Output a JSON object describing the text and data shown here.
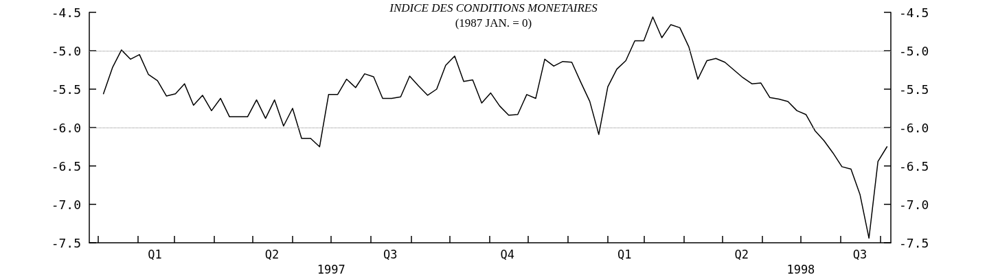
{
  "chart_data": {
    "type": "line",
    "title": "INDICE DES CONDITIONS MONETAIRES",
    "subtitle": "(1987 JAN. = 0)",
    "x": [
      "1997-01-05",
      "1997-01-12",
      "1997-01-19",
      "1997-01-26",
      "1997-02-02",
      "1997-02-09",
      "1997-02-16",
      "1997-02-23",
      "1997-03-02",
      "1997-03-09",
      "1997-03-16",
      "1997-03-23",
      "1997-03-30",
      "1997-04-06",
      "1997-04-13",
      "1997-04-20",
      "1997-04-27",
      "1997-05-04",
      "1997-05-11",
      "1997-05-18",
      "1997-05-25",
      "1997-06-01",
      "1997-06-08",
      "1997-06-15",
      "1997-06-22",
      "1997-06-29",
      "1997-07-06",
      "1997-07-13",
      "1997-07-20",
      "1997-07-27",
      "1997-08-03",
      "1997-08-10",
      "1997-08-17",
      "1997-08-24",
      "1997-08-31",
      "1997-09-07",
      "1997-09-14",
      "1997-09-21",
      "1997-09-28",
      "1997-10-05",
      "1997-10-12",
      "1997-10-19",
      "1997-10-26",
      "1997-11-02",
      "1997-11-09",
      "1997-11-16",
      "1997-11-23",
      "1997-11-30",
      "1997-12-07",
      "1997-12-14",
      "1997-12-21",
      "1997-12-28",
      "1998-01-04",
      "1998-01-11",
      "1998-01-18",
      "1998-01-25",
      "1998-02-01",
      "1998-02-08",
      "1998-02-15",
      "1998-02-22",
      "1998-03-01",
      "1998-03-08",
      "1998-03-15",
      "1998-03-22",
      "1998-03-29",
      "1998-04-05",
      "1998-04-12",
      "1998-04-19",
      "1998-04-26",
      "1998-05-03",
      "1998-05-10",
      "1998-05-17",
      "1998-05-24",
      "1998-05-31",
      "1998-06-07",
      "1998-06-14",
      "1998-06-21",
      "1998-06-28",
      "1998-07-05",
      "1998-07-12",
      "1998-07-19",
      "1998-07-26",
      "1998-08-02",
      "1998-08-09",
      "1998-08-16",
      "1998-08-23",
      "1998-08-30",
      "1998-09-06"
    ],
    "series": [
      {
        "color": "#000000",
        "values": [
          -5.56,
          -5.22,
          -4.99,
          -5.11,
          -5.05,
          -5.31,
          -5.39,
          -5.59,
          -5.56,
          -5.43,
          -5.71,
          -5.58,
          -5.78,
          -5.62,
          -5.86,
          -5.86,
          -5.86,
          -5.64,
          -5.88,
          -5.64,
          -5.98,
          -5.75,
          -6.14,
          -6.14,
          -6.25,
          -5.57,
          -5.57,
          -5.37,
          -5.48,
          -5.3,
          -5.34,
          -5.62,
          -5.62,
          -5.6,
          -5.33,
          -5.46,
          -5.58,
          -5.5,
          -5.19,
          -5.07,
          -5.4,
          -5.38,
          -5.68,
          -5.55,
          -5.72,
          -5.84,
          -5.83,
          -5.57,
          -5.62,
          -5.11,
          -5.2,
          -5.14,
          -5.15,
          -5.41,
          -5.66,
          -6.09,
          -5.47,
          -5.24,
          -5.13,
          -4.87,
          -4.87,
          -4.56,
          -4.83,
          -4.66,
          -4.7,
          -4.95,
          -5.37,
          -5.13,
          -5.1,
          -5.15,
          -5.25,
          -5.35,
          -5.43,
          -5.42,
          -5.61,
          -5.63,
          -5.66,
          -5.78,
          -5.83,
          -6.04,
          -6.17,
          -6.33,
          -6.51,
          -6.54,
          -6.87,
          -7.44,
          -6.44,
          -6.25
        ]
      }
    ],
    "xlim": [
      "1996-12-25",
      "1998-09-09"
    ],
    "xticks": [
      {
        "value": "1997-01-01",
        "label": null
      },
      {
        "value": "1997-02-01",
        "label": null
      },
      {
        "value": "1997-03-01",
        "label": null
      },
      {
        "value": "1997-04-01",
        "label": null
      },
      {
        "value": "1997-05-01",
        "label": null
      },
      {
        "value": "1997-06-01",
        "label": null
      },
      {
        "value": "1997-07-01",
        "label": null
      },
      {
        "value": "1997-08-01",
        "label": null
      },
      {
        "value": "1997-09-01",
        "label": null
      },
      {
        "value": "1997-10-01",
        "label": null
      },
      {
        "value": "1997-11-01",
        "label": null
      },
      {
        "value": "1997-12-01",
        "label": null
      },
      {
        "value": "1998-01-01",
        "label": null
      },
      {
        "value": "1998-02-01",
        "label": null
      },
      {
        "value": "1998-03-01",
        "label": null
      },
      {
        "value": "1998-04-01",
        "label": null
      },
      {
        "value": "1998-05-01",
        "label": null
      },
      {
        "value": "1998-06-01",
        "label": null
      },
      {
        "value": "1998-07-01",
        "label": null
      },
      {
        "value": "1998-08-01",
        "label": null
      },
      {
        "value": "1998-09-01",
        "label": null
      },
      {
        "value": "1997-02-14",
        "label": "Q1"
      },
      {
        "value": "1997-05-16",
        "label": "Q2"
      },
      {
        "value": "1997-08-16",
        "label": "Q3"
      },
      {
        "value": "1997-11-15",
        "label": "Q4"
      },
      {
        "value": "1998-02-14",
        "label": "Q1"
      },
      {
        "value": "1998-05-16",
        "label": "Q2"
      },
      {
        "value": "1998-08-16",
        "label": "Q3"
      }
    ],
    "x2lim": [
      "1996-12-25",
      "1998-09-09"
    ],
    "x2ticks": [
      {
        "value": "1997-07-01",
        "label": "1997"
      },
      {
        "value": "1998-07-01",
        "label": "1998"
      }
    ],
    "ylim": [
      -7.5,
      -4.5
    ],
    "yticks": [
      -7.5,
      {
        "value": -7,
        "label": "-7.0"
      },
      -6.5,
      {
        "value": -6,
        "label": "-6.0"
      },
      -5.5,
      {
        "value": -5,
        "label": "-5.0"
      },
      -4.5
    ],
    "y2lim": [
      -7.5,
      -4.5
    ],
    "y2ticks": [
      -7.5,
      {
        "value": -7,
        "label": "-7.0"
      },
      -6.5,
      {
        "value": -6,
        "label": "-6.0"
      },
      -5.5,
      {
        "value": -5,
        "label": "-5.0"
      },
      -4.5
    ],
    "ref_lines": [
      {
        "axis": "y",
        "value": -5,
        "color": "#888888",
        "line_style": "dotted"
      },
      {
        "axis": "y",
        "value": -6,
        "color": "#888888",
        "line_style": "dotted"
      }
    ],
    "grid": false,
    "marker": "none",
    "line_style": "solid"
  }
}
